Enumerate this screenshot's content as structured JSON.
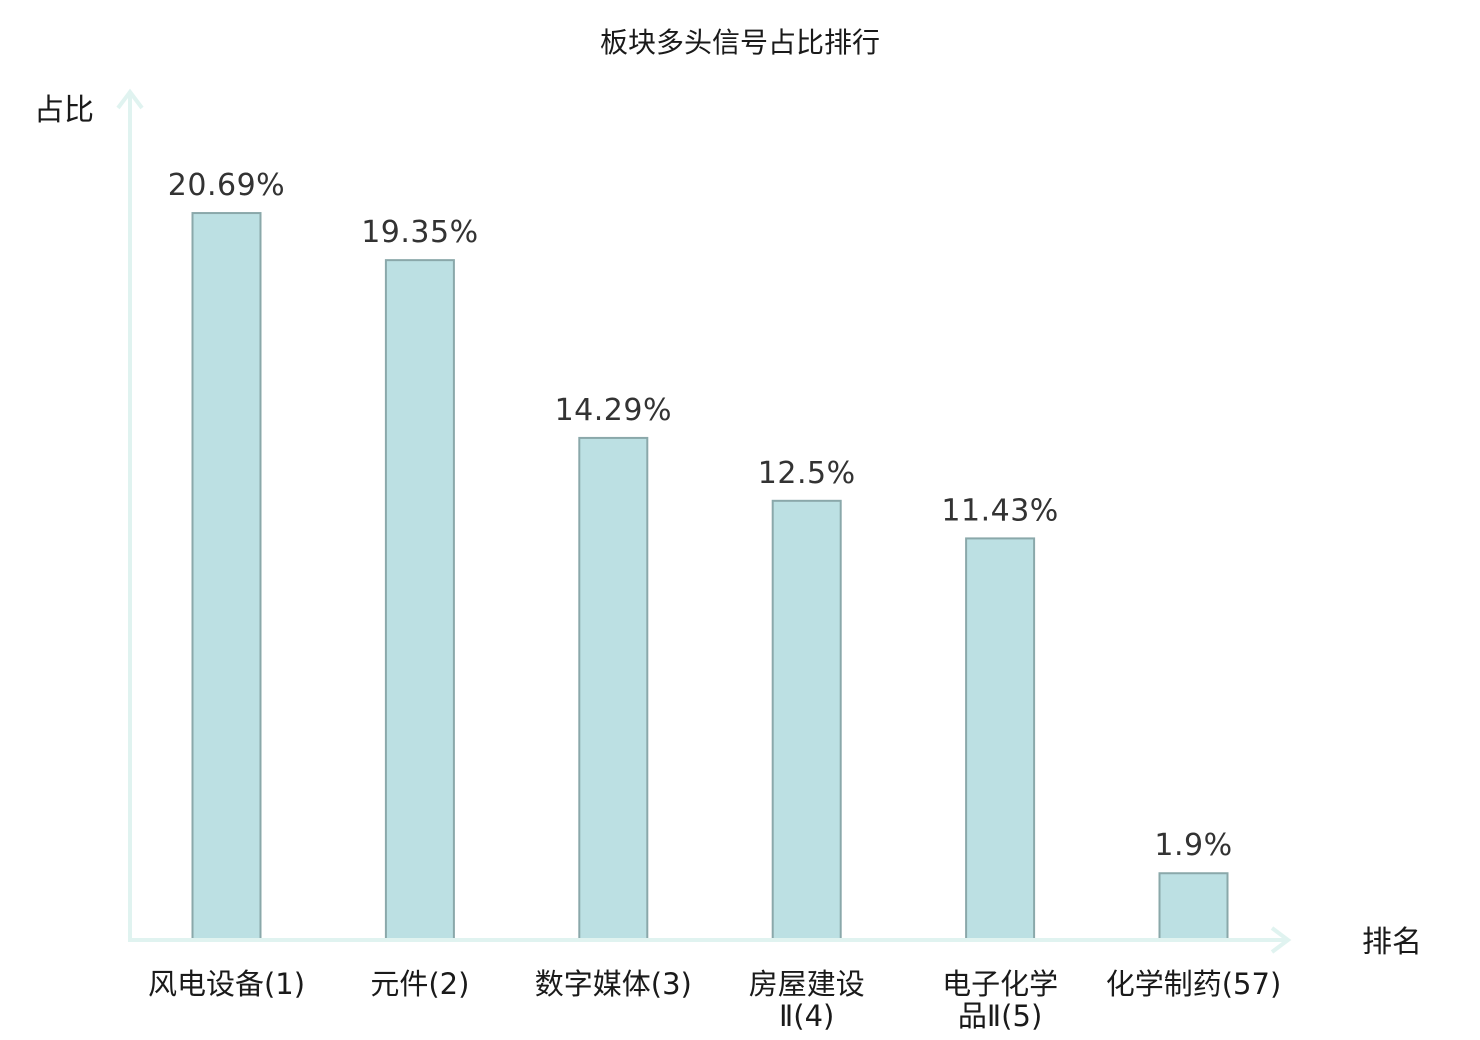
{
  "chart_data": {
    "type": "bar",
    "title": "板块多头信号占比排行",
    "ylabel": "占比",
    "xlabel": "排名",
    "ylim": [
      0,
      22.2
    ],
    "categories": [
      [
        "风电设备(1)"
      ],
      [
        "元件(2)"
      ],
      [
        "数字媒体(3)"
      ],
      [
        "房屋建设",
        "Ⅱ(4)"
      ],
      [
        "电子化学",
        "品Ⅱ(5)"
      ],
      [
        "化学制药(57)"
      ]
    ],
    "values": [
      20.69,
      19.35,
      14.29,
      12.5,
      11.43,
      1.9
    ],
    "value_labels": [
      "20.69%",
      "19.35%",
      "14.29%",
      "12.5%",
      "11.43%",
      "1.9%"
    ],
    "highlight_index": 5,
    "grid": false,
    "colors": {
      "bar_fill": "#bce0e3",
      "bar_stroke": "#8aa8aa",
      "axis": "#e0f3f0",
      "text": "#1a1a1a",
      "value_text": "#333333",
      "highlight": "#e60000"
    }
  }
}
